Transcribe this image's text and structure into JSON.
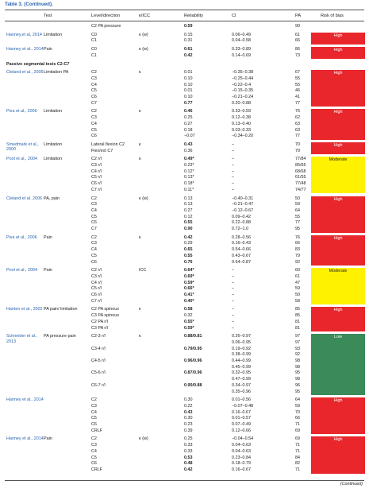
{
  "header": {
    "title": "Table 3. (Continued).",
    "columns": [
      "Test",
      "Level/direction",
      "κ/ICC",
      "Reliability",
      "CI",
      "PA",
      "Risk of bias"
    ]
  },
  "groups": [
    {
      "rows": [
        {
          "level": "C2 PA pressure",
          "rel": "0.59",
          "bold": true,
          "pa": "90"
        }
      ]
    },
    {
      "study": "Hanney,et al, 2014",
      "test": "Limitation",
      "stat": "κ (w)",
      "risk": "High",
      "rows": [
        {
          "level": "C0",
          "rel": "0.15",
          "ci": "0.06–0.49",
          "pa": "61"
        },
        {
          "level": "C1",
          "rel": "0.31",
          "ci": "0.04–0.58",
          "pa": "66"
        }
      ]
    },
    {
      "study": "Hanney et al., 2014",
      "test": "Pain",
      "stat": "κ (w)",
      "risk": "High",
      "rows": [
        {
          "level": "C0",
          "rel": "0.61",
          "bold": true,
          "ci": "0.33–0.89",
          "pa": "86"
        },
        {
          "level": "C1",
          "rel": "0.42",
          "bold": true,
          "ci": "0.14–0.69",
          "pa": "73"
        }
      ]
    },
    {
      "section": "Passive segmental tests C2-C7"
    },
    {
      "study": "Cleland et al., 2006",
      "test": "Limitation PA",
      "stat": "κ",
      "risk": "High",
      "rows": [
        {
          "level": "C2",
          "rel": "0.01",
          "ci": "−0.35–0.38",
          "pa": "67"
        },
        {
          "level": "C3",
          "rel": "0.10",
          "ci": "−0.25–0.44",
          "pa": "55"
        },
        {
          "level": "C4",
          "rel": "0.10",
          "ci": "−0.22–0.4",
          "pa": "55"
        },
        {
          "level": "C5",
          "rel": "0.01",
          "ci": "−0.15–0.35",
          "pa": "46"
        },
        {
          "level": "C6",
          "rel": "0.10",
          "ci": "−0.21–0.24",
          "pa": "41"
        },
        {
          "level": "C7",
          "rel": "0.77",
          "bold": true,
          "ci": "0.20–0.88",
          "pa": "77"
        }
      ]
    },
    {
      "study": "Piva et al., 2006",
      "test": "Limitation",
      "stat": "κ",
      "risk": "High",
      "rows": [
        {
          "level": "C2",
          "rel": "0.46",
          "bold": true,
          "ci": "0.33–0.59",
          "pa": "76"
        },
        {
          "level": "C3",
          "rel": "0.25",
          "ci": "0.12–0.38",
          "pa": "62"
        },
        {
          "level": "C4",
          "rel": "0.27",
          "ci": "0.13–0.40",
          "pa": "63"
        },
        {
          "level": "C5",
          "rel": "0.18",
          "ci": "0.03–0.33",
          "pa": "63"
        },
        {
          "level": "C6",
          "rel": "−0.07",
          "ci": "−0.34–0.20",
          "pa": "77"
        }
      ]
    },
    {
      "study": "Smedmark et al., 2000",
      "test": "Limitation",
      "stat": "κ",
      "risk": "High",
      "rows": [
        {
          "level": "Lateral flexion C2",
          "rel": "0.43",
          "bold": true,
          "ci": "–",
          "pa": "70"
        },
        {
          "level": "Flex/ext C7",
          "rel": "0.36",
          "ci": "–",
          "pa": "79"
        }
      ]
    },
    {
      "study": "Pool et al., 2004",
      "test": "Limitation",
      "stat": "κ",
      "risk": "Moderate",
      "rows": [
        {
          "level": "C2 r/l",
          "rel": "0.49*",
          "bold": true,
          "ci": "–",
          "pa": "77/84"
        },
        {
          "level": "C3 r/l",
          "rel": "0.23*",
          "ci": "–",
          "pa": "85/65"
        },
        {
          "level": "C4 r/l",
          "rel": "0.12*",
          "ci": "–",
          "pa": "68/68"
        },
        {
          "level": "C5 r/l",
          "rel": "0.13*",
          "ci": "–",
          "pa": "61/55"
        },
        {
          "level": "C6 r/l",
          "rel": "0.18*",
          "ci": "–",
          "pa": "77/48"
        },
        {
          "level": "C7 r/l",
          "rel": "0.11*",
          "ci": "–",
          "pa": "74/77"
        }
      ]
    },
    {
      "study": "Cleland et al. 2006",
      "test": "PA, pain",
      "stat": "κ (w)",
      "risk": "High",
      "rows": [
        {
          "level": "C2",
          "rel": "0.13",
          "ci": "−0.40–0.31",
          "pa": "50"
        },
        {
          "level": "C3",
          "rel": "0.13",
          "ci": "−0.21–0.47",
          "pa": "59"
        },
        {
          "level": "C4",
          "rel": "0.27",
          "ci": "−0.12–0.67",
          "pa": "64"
        },
        {
          "level": "C5",
          "rel": "0.12",
          "ci": "0.09–0.42",
          "pa": "55"
        },
        {
          "level": "C6",
          "rel": "0.55",
          "bold": true,
          "ci": "0.22–0.88",
          "pa": "77"
        },
        {
          "level": "C7",
          "rel": "0.90",
          "bold": true,
          "ci": "0.72–1.0",
          "pa": "95"
        }
      ]
    },
    {
      "study": "Piva et al., 2006",
      "test": "Pain",
      "stat": "κ",
      "risk": "High",
      "rows": [
        {
          "level": "C2",
          "rel": "0.42",
          "bold": true,
          "ci": "0.28–0.56",
          "pa": "76"
        },
        {
          "level": "C3",
          "rel": "0.29",
          "ci": "0.16–0.43",
          "pa": "66"
        },
        {
          "level": "C4",
          "rel": "0.65",
          "bold": true,
          "ci": "0.54–0.66",
          "pa": "83"
        },
        {
          "level": "C5",
          "rel": "0.55",
          "bold": true,
          "ci": "0.43–0.67",
          "pa": "79"
        },
        {
          "level": "C6",
          "rel": "0.76",
          "bold": true,
          "ci": "0.64–0.87",
          "pa": "92"
        }
      ]
    },
    {
      "study": "Pool et al., 2004",
      "test": "Pain",
      "stat": "ICC",
      "risk": "Moderate",
      "rows": [
        {
          "level": "C2 r/l",
          "rel": "0.64*",
          "bold": true,
          "ci": "–",
          "pa": "60"
        },
        {
          "level": "C3 r/l",
          "rel": "0.69*",
          "bold": true,
          "ci": "–",
          "pa": "61"
        },
        {
          "level": "C4 r/l",
          "rel": "0.59*",
          "bold": true,
          "ci": "–",
          "pa": "47"
        },
        {
          "level": "C5 r/l",
          "rel": "0.66*",
          "bold": true,
          "ci": "–",
          "pa": "59"
        },
        {
          "level": "C6 r/l",
          "rel": "0.41*",
          "bold": true,
          "ci": "–",
          "pa": "50"
        },
        {
          "level": "C7 r/l",
          "rel": "0.40*",
          "bold": true,
          "ci": "–",
          "pa": "58"
        }
      ]
    },
    {
      "study": "Hanten et al., 2002",
      "test": "PA pain/ limitation",
      "stat": "κ",
      "risk": "High",
      "rows": [
        {
          "level": "C2 PA spinous",
          "rel": "0.58",
          "bold": true,
          "ci": "–",
          "pa": "85"
        },
        {
          "level": "C3 PA spinous",
          "rel": "0.32",
          "ci": "–",
          "pa": "85"
        },
        {
          "level": "C2 PA r/l",
          "rel": "0.55*",
          "bold": true,
          "ci": "–",
          "pa": "81"
        },
        {
          "level": "C3 PA r/l",
          "rel": "0.59*",
          "bold": true,
          "ci": "–",
          "pa": "81"
        }
      ]
    },
    {
      "study": "Schneider et al., 2013",
      "test": "PA pressure pain",
      "stat": "κ",
      "risk": "Low",
      "rows": [
        {
          "level": "C2-3 r/l",
          "rel": "0.88/0.81",
          "bold": true,
          "ci": "0.26–0.97",
          "pa": "97"
        },
        {
          "ci": "0.06–0.95",
          "pa": "97"
        },
        {
          "level": "C3-4 r/l",
          "rel": "0.79/0.95",
          "bold": true,
          "ci": "0.19–0.92",
          "pa": "93"
        },
        {
          "ci": "0.38–0.99",
          "pa": "92"
        },
        {
          "level": "C4-5 r/l",
          "rel": "0.96/0.96",
          "bold": true,
          "ci": "0.44–0.99",
          "pa": "98"
        },
        {
          "ci": "0.45–0.99",
          "pa": "98"
        },
        {
          "level": "C5-6 r/l",
          "rel": "0.87/0.96",
          "bold": true,
          "ci": "0.32–0.95",
          "pa": "95"
        },
        {
          "ci": "0.47–0.99",
          "pa": "98"
        },
        {
          "level": "C6-7 r/l",
          "rel": "0.90/0.88",
          "bold": true,
          "ci": "0.34–0.97",
          "pa": "96"
        },
        {
          "ci": "0.35–0.96",
          "pa": "95"
        }
      ]
    },
    {
      "study": "Hanney et al., 2014",
      "risk": "High",
      "rows": [
        {
          "level": "C2",
          "rel": "0.30",
          "ci": "0.01–0.56",
          "pa": "64"
        },
        {
          "level": "C3",
          "rel": "0.22",
          "ci": "−0.07–0.48",
          "pa": "59"
        },
        {
          "level": "C4",
          "rel": "0.43",
          "bold": true,
          "ci": "0.16–0.67",
          "pa": "70"
        },
        {
          "level": "C5",
          "rel": "0.30",
          "ci": "0.01–0.57",
          "pa": "66"
        },
        {
          "level": "C6",
          "rel": "0.23",
          "ci": "0.07–0.49",
          "pa": "71"
        },
        {
          "level": "CRLF",
          "rel": "0.39",
          "ci": "0.12–0.66",
          "pa": "69"
        }
      ]
    },
    {
      "study": "Hanney et al., 2014",
      "test": "Pain",
      "stat": "κ (w)",
      "risk": "High",
      "rows": [
        {
          "level": "C2",
          "rel": "0.25",
          "ci": "−0.04–0.54",
          "pa": "69"
        },
        {
          "level": "C3",
          "rel": "0.33",
          "ci": "0.04–0.63",
          "pa": "71"
        },
        {
          "level": "C4",
          "rel": "0.33",
          "ci": "0.04–0.63",
          "pa": "71"
        },
        {
          "level": "C5",
          "rel": "0.53",
          "bold": true,
          "ci": "0.23–0.84",
          "pa": "84"
        },
        {
          "level": "C6",
          "rel": "0.48",
          "bold": true,
          "ci": "0.18–0.79",
          "pa": "82"
        },
        {
          "level": "CRLF",
          "rel": "0.42",
          "bold": true,
          "ci": "0.16–0.67",
          "pa": "71"
        }
      ]
    }
  ],
  "footer": "(Continued)"
}
